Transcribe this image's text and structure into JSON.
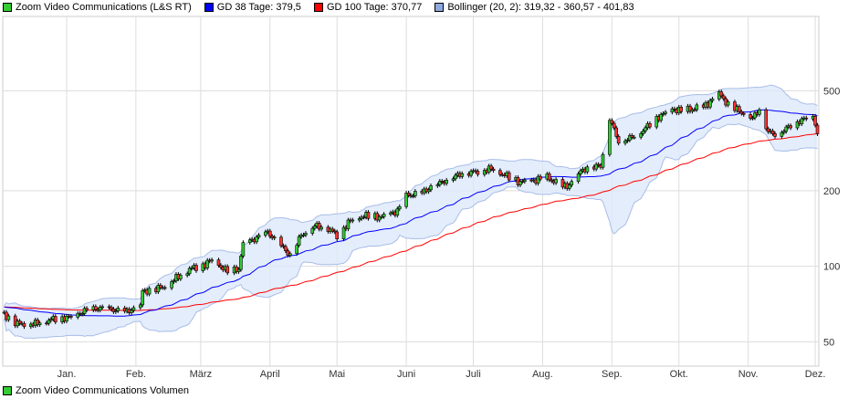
{
  "legend": [
    {
      "label": "Zoom Video Communications (L&S RT)",
      "color": "#33cc33"
    },
    {
      "label": "GD 38 Tage: 379,5",
      "color": "#0000ff"
    },
    {
      "label": "GD 100 Tage: 370,77",
      "color": "#ff0000"
    },
    {
      "label": "Bollinger (20, 2): 319,32 - 360,57 - 401,83",
      "color": "#8fa8dd"
    }
  ],
  "volume_label": "Zoom Video Communications Volumen",
  "volume_color": "#33cc33",
  "chart_data": {
    "type": "candlestick",
    "title": "",
    "y_scale": "log",
    "ylim": [
      40,
      990
    ],
    "y_ticks": [
      {
        "v": 50,
        "label": "50"
      },
      {
        "v": 100,
        "label": "100"
      },
      {
        "v": 200,
        "label": "200"
      },
      {
        "v": 500,
        "label": "500"
      }
    ],
    "x_ticks": [
      {
        "date": "2020-01-01",
        "label": "Jan."
      },
      {
        "date": "2020-02-01",
        "label": "Feb."
      },
      {
        "date": "2020-03-01",
        "label": "März"
      },
      {
        "date": "2020-04-01",
        "label": "April"
      },
      {
        "date": "2020-05-01",
        "label": "Mai"
      },
      {
        "date": "2020-06-01",
        "label": "Juni"
      },
      {
        "date": "2020-07-01",
        "label": "Juli"
      },
      {
        "date": "2020-08-01",
        "label": "Aug."
      },
      {
        "date": "2020-09-01",
        "label": "Sep."
      },
      {
        "date": "2020-10-01",
        "label": "Okt."
      },
      {
        "date": "2020-11-01",
        "label": "Nov."
      },
      {
        "date": "2020-12-01",
        "label": "Dez."
      }
    ],
    "grid": true,
    "colors": {
      "up": "#33cc33",
      "down": "#ff3333",
      "ma38": "#0000ff",
      "ma100": "#ff0000",
      "band_fill": "#dde8fa",
      "band_line": "#a8bde8"
    },
    "close_series": [
      [
        "2019-12-04",
        64.3
      ],
      [
        "2019-12-10",
        59.1
      ],
      [
        "2019-12-18",
        59.1
      ],
      [
        "2019-12-26",
        61.7
      ],
      [
        "2020-01-03",
        62.7
      ],
      [
        "2020-01-10",
        67.0
      ],
      [
        "2020-01-16",
        68.1
      ],
      [
        "2020-01-22",
        67.0
      ],
      [
        "2020-01-28",
        65.9
      ],
      [
        "2020-02-03",
        69.9
      ],
      [
        "2020-02-04",
        79.2
      ],
      [
        "2020-02-13",
        82.6
      ],
      [
        "2020-02-19",
        89.8
      ],
      [
        "2020-02-25",
        97.7
      ],
      [
        "2020-03-03",
        101.9
      ],
      [
        "2020-03-06",
        106
      ],
      [
        "2020-03-13",
        95.3
      ],
      [
        "2020-03-18",
        97.7
      ],
      [
        "2020-03-20",
        122
      ],
      [
        "2020-03-27",
        131
      ],
      [
        "2020-03-31",
        136.5
      ],
      [
        "2020-04-06",
        120.5
      ],
      [
        "2020-04-10",
        110.7
      ],
      [
        "2020-04-15",
        133
      ],
      [
        "2020-04-21",
        145
      ],
      [
        "2020-04-27",
        142
      ],
      [
        "2020-05-01",
        133
      ],
      [
        "2020-05-07",
        152
      ],
      [
        "2020-05-13",
        159
      ],
      [
        "2020-05-21",
        157
      ],
      [
        "2020-05-28",
        166
      ],
      [
        "2020-06-01",
        191
      ],
      [
        "2020-06-08",
        196
      ],
      [
        "2020-06-12",
        207
      ],
      [
        "2020-06-19",
        220
      ],
      [
        "2020-06-26",
        235
      ],
      [
        "2020-07-03",
        239
      ],
      [
        "2020-07-09",
        245
      ],
      [
        "2020-07-15",
        231
      ],
      [
        "2020-07-22",
        216
      ],
      [
        "2020-07-28",
        220
      ],
      [
        "2020-08-03",
        226
      ],
      [
        "2020-08-10",
        207
      ],
      [
        "2020-08-13",
        211
      ],
      [
        "2020-08-19",
        243
      ],
      [
        "2020-08-27",
        252
      ],
      [
        "2020-08-31",
        389
      ],
      [
        "2020-09-04",
        315
      ],
      [
        "2020-09-09",
        324
      ],
      [
        "2020-09-14",
        343
      ],
      [
        "2020-09-21",
        389
      ],
      [
        "2020-09-28",
        423
      ],
      [
        "2020-10-02",
        416
      ],
      [
        "2020-10-12",
        430
      ],
      [
        "2020-10-19",
        487
      ],
      [
        "2020-10-23",
        441
      ],
      [
        "2020-10-30",
        406
      ],
      [
        "2020-11-03",
        389
      ],
      [
        "2020-11-06",
        423
      ],
      [
        "2020-11-10",
        343
      ],
      [
        "2020-11-13",
        336
      ],
      [
        "2020-11-17",
        349
      ],
      [
        "2020-11-20",
        364
      ],
      [
        "2020-11-25",
        383
      ],
      [
        "2020-11-30",
        395
      ],
      [
        "2020-12-02",
        343
      ]
    ]
  }
}
